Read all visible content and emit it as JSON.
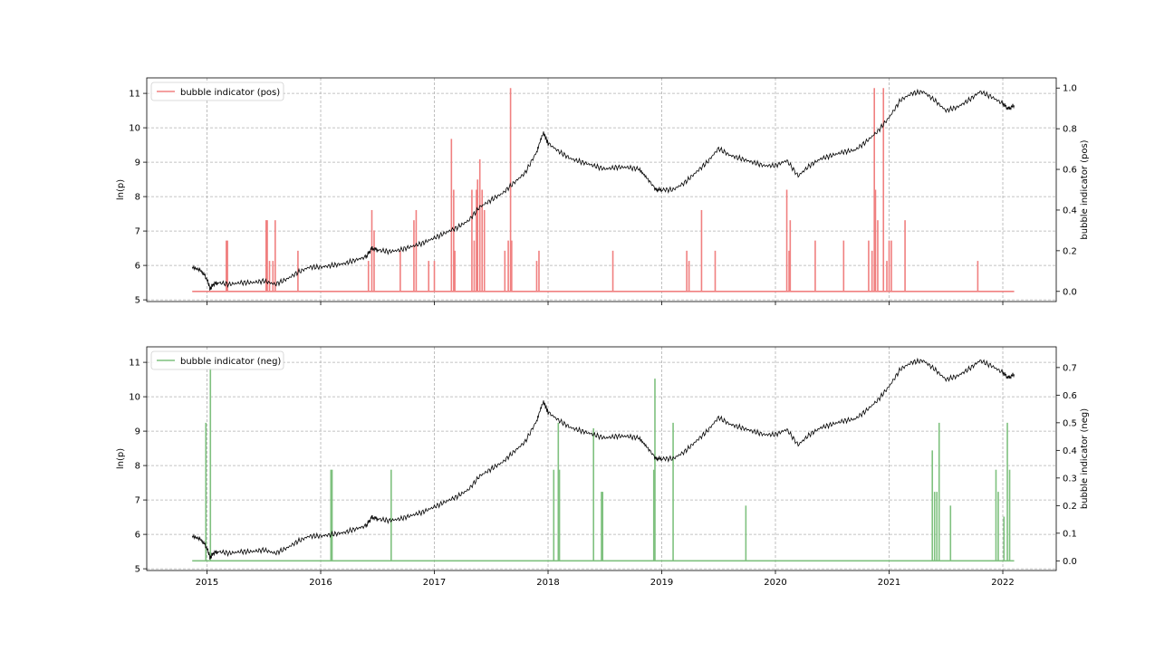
{
  "chart_data": [
    {
      "type": "line",
      "ylabel": "ln(p)",
      "ylabel_right": "bubble indicator (pos)",
      "ylim": [
        4.95,
        11.45
      ],
      "ylim_right": [
        -0.05,
        1.05
      ],
      "yticks": [
        5,
        6,
        7,
        8,
        9,
        10,
        11
      ],
      "yticks_right": [
        "0.0",
        "0.2",
        "0.4",
        "0.6",
        "0.8",
        "1.0"
      ],
      "xlim": [
        2014.47,
        2022.47
      ],
      "xticks": [
        "2015",
        "2016",
        "2017",
        "2018",
        "2019",
        "2020",
        "2021",
        "2022"
      ],
      "xtick_labels_visible": false,
      "grid": true,
      "legend": {
        "label": "bubble indicator (pos)",
        "loc": "upper-left",
        "color": "#f08080"
      },
      "price_series": {
        "name": "ln(p)",
        "color": "#000000",
        "x": [
          2014.87,
          2014.95,
          2015.0,
          2015.03,
          2015.05,
          2015.1,
          2015.2,
          2015.3,
          2015.4,
          2015.5,
          2015.6,
          2015.7,
          2015.8,
          2015.9,
          2016.0,
          2016.1,
          2016.2,
          2016.3,
          2016.4,
          2016.45,
          2016.5,
          2016.6,
          2016.7,
          2016.8,
          2016.9,
          2017.0,
          2017.1,
          2017.2,
          2017.3,
          2017.4,
          2017.5,
          2017.6,
          2017.7,
          2017.8,
          2017.9,
          2017.96,
          2018.0,
          2018.1,
          2018.2,
          2018.3,
          2018.4,
          2018.5,
          2018.6,
          2018.7,
          2018.8,
          2018.88,
          2018.95,
          2019.0,
          2019.1,
          2019.2,
          2019.3,
          2019.4,
          2019.5,
          2019.6,
          2019.7,
          2019.8,
          2019.9,
          2020.0,
          2020.1,
          2020.2,
          2020.3,
          2020.4,
          2020.5,
          2020.6,
          2020.7,
          2020.8,
          2020.9,
          2021.0,
          2021.1,
          2021.2,
          2021.3,
          2021.4,
          2021.5,
          2021.6,
          2021.7,
          2021.8,
          2021.9,
          2022.0,
          2022.05,
          2022.1
        ],
        "values": [
          5.95,
          5.85,
          5.6,
          5.3,
          5.45,
          5.5,
          5.45,
          5.5,
          5.5,
          5.55,
          5.45,
          5.6,
          5.8,
          5.95,
          5.95,
          6.0,
          6.05,
          6.15,
          6.25,
          6.5,
          6.45,
          6.4,
          6.45,
          6.55,
          6.65,
          6.8,
          6.95,
          7.1,
          7.3,
          7.7,
          7.9,
          8.1,
          8.4,
          8.7,
          9.3,
          9.85,
          9.55,
          9.3,
          9.1,
          9.0,
          8.9,
          8.8,
          8.85,
          8.85,
          8.8,
          8.5,
          8.2,
          8.2,
          8.2,
          8.4,
          8.7,
          9.0,
          9.4,
          9.2,
          9.1,
          9.0,
          8.9,
          8.9,
          9.05,
          8.6,
          8.9,
          9.1,
          9.2,
          9.3,
          9.35,
          9.6,
          9.9,
          10.3,
          10.8,
          11.0,
          11.05,
          10.8,
          10.5,
          10.6,
          10.8,
          11.05,
          10.9,
          10.7,
          10.55,
          10.65
        ]
      },
      "indicator_series": {
        "name": "bubble indicator (pos)",
        "color": "#f08080",
        "x": [
          2015.17,
          2015.18,
          2015.52,
          2015.53,
          2015.55,
          2015.58,
          2015.6,
          2015.8,
          2016.42,
          2016.45,
          2016.47,
          2016.7,
          2016.82,
          2016.84,
          2016.95,
          2017.0,
          2017.15,
          2017.17,
          2017.18,
          2017.33,
          2017.35,
          2017.37,
          2017.38,
          2017.4,
          2017.42,
          2017.44,
          2017.62,
          2017.65,
          2017.67,
          2017.68,
          2017.9,
          2017.92,
          2018.57,
          2019.22,
          2019.24,
          2019.35,
          2019.47,
          2020.1,
          2020.12,
          2020.13,
          2020.35,
          2020.6,
          2020.82,
          2020.85,
          2020.87,
          2020.88,
          2020.9,
          2020.95,
          2020.98,
          2021.0,
          2021.02,
          2021.14,
          2021.78
        ],
        "values": [
          0.25,
          0.25,
          0.35,
          0.35,
          0.15,
          0.15,
          0.35,
          0.2,
          0.15,
          0.4,
          0.3,
          0.2,
          0.35,
          0.4,
          0.15,
          0.15,
          0.75,
          0.5,
          0.2,
          0.5,
          0.25,
          0.5,
          0.55,
          0.65,
          0.5,
          0.4,
          0.2,
          0.25,
          1.0,
          0.25,
          0.15,
          0.2,
          0.2,
          0.2,
          0.15,
          0.4,
          0.2,
          0.5,
          0.2,
          0.35,
          0.25,
          0.25,
          0.25,
          0.2,
          1.0,
          0.5,
          0.35,
          1.0,
          0.15,
          0.25,
          0.25,
          0.35,
          0.15
        ]
      }
    },
    {
      "type": "line",
      "ylabel": "ln(p)",
      "ylabel_right": "bubble indicator (neg)",
      "ylim": [
        4.95,
        11.45
      ],
      "ylim_right": [
        -0.035,
        0.775
      ],
      "yticks": [
        5,
        6,
        7,
        8,
        9,
        10,
        11
      ],
      "yticks_right": [
        "0.0",
        "0.1",
        "0.2",
        "0.3",
        "0.4",
        "0.5",
        "0.6",
        "0.7"
      ],
      "xlim": [
        2014.47,
        2022.47
      ],
      "xticks": [
        "2015",
        "2016",
        "2017",
        "2018",
        "2019",
        "2020",
        "2021",
        "2022"
      ],
      "xtick_labels_visible": true,
      "grid": true,
      "legend": {
        "label": "bubble indicator (neg)",
        "loc": "upper-left",
        "color": "#7fc17f"
      },
      "price_series": {
        "name": "ln(p)",
        "color": "#000000",
        "x": [
          2014.87,
          2014.95,
          2015.0,
          2015.03,
          2015.05,
          2015.1,
          2015.2,
          2015.3,
          2015.4,
          2015.5,
          2015.6,
          2015.7,
          2015.8,
          2015.9,
          2016.0,
          2016.1,
          2016.2,
          2016.3,
          2016.4,
          2016.45,
          2016.5,
          2016.6,
          2016.7,
          2016.8,
          2016.9,
          2017.0,
          2017.1,
          2017.2,
          2017.3,
          2017.4,
          2017.5,
          2017.6,
          2017.7,
          2017.8,
          2017.9,
          2017.96,
          2018.0,
          2018.1,
          2018.2,
          2018.3,
          2018.4,
          2018.5,
          2018.6,
          2018.7,
          2018.8,
          2018.88,
          2018.95,
          2019.0,
          2019.1,
          2019.2,
          2019.3,
          2019.4,
          2019.5,
          2019.6,
          2019.7,
          2019.8,
          2019.9,
          2020.0,
          2020.1,
          2020.2,
          2020.3,
          2020.4,
          2020.5,
          2020.6,
          2020.7,
          2020.8,
          2020.9,
          2021.0,
          2021.1,
          2021.2,
          2021.3,
          2021.4,
          2021.5,
          2021.6,
          2021.7,
          2021.8,
          2021.9,
          2022.0,
          2022.05,
          2022.1
        ],
        "values": [
          5.95,
          5.85,
          5.6,
          5.3,
          5.45,
          5.5,
          5.45,
          5.5,
          5.5,
          5.55,
          5.45,
          5.6,
          5.8,
          5.95,
          5.95,
          6.0,
          6.05,
          6.15,
          6.25,
          6.5,
          6.45,
          6.4,
          6.45,
          6.55,
          6.65,
          6.8,
          6.95,
          7.1,
          7.3,
          7.7,
          7.9,
          8.1,
          8.4,
          8.7,
          9.3,
          9.85,
          9.55,
          9.3,
          9.1,
          9.0,
          8.9,
          8.8,
          8.85,
          8.85,
          8.8,
          8.5,
          8.2,
          8.2,
          8.2,
          8.4,
          8.7,
          9.0,
          9.4,
          9.2,
          9.1,
          9.0,
          8.9,
          8.9,
          9.05,
          8.6,
          8.9,
          9.1,
          9.2,
          9.3,
          9.35,
          9.6,
          9.9,
          10.3,
          10.8,
          11.0,
          11.05,
          10.8,
          10.5,
          10.6,
          10.8,
          11.05,
          10.9,
          10.7,
          10.55,
          10.65
        ]
      },
      "indicator_series": {
        "name": "bubble indicator (neg)",
        "color": "#7fc17f",
        "x": [
          2014.99,
          2015.03,
          2016.09,
          2016.1,
          2016.62,
          2018.05,
          2018.09,
          2018.1,
          2018.4,
          2018.47,
          2018.48,
          2018.93,
          2018.94,
          2019.1,
          2019.74,
          2021.38,
          2021.4,
          2021.42,
          2021.44,
          2021.54,
          2021.94,
          2021.96,
          2022.01,
          2022.04,
          2022.06
        ],
        "values": [
          0.5,
          0.7,
          0.33,
          0.33,
          0.33,
          0.33,
          0.5,
          0.33,
          0.48,
          0.25,
          0.25,
          0.33,
          0.66,
          0.5,
          0.2,
          0.4,
          0.25,
          0.25,
          0.5,
          0.2,
          0.33,
          0.25,
          0.16,
          0.5,
          0.33
        ]
      }
    }
  ]
}
